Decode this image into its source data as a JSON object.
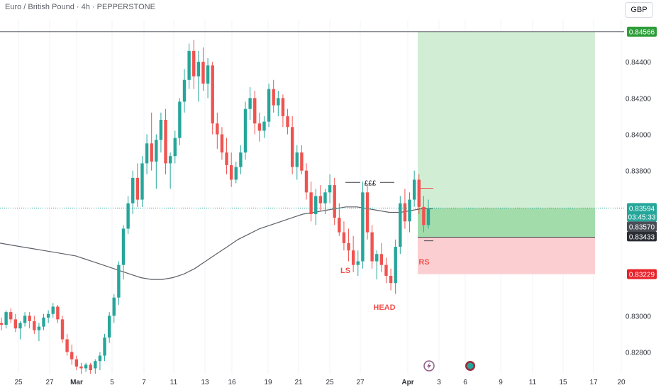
{
  "header": {
    "title": "Euro / British Pound · 4h · PEPPERSTONE",
    "currency_button": "GBP"
  },
  "chart_data": {
    "type": "candlestick",
    "ylim": [
      0.827,
      0.846
    ],
    "y_ticks": [
      "0.84400",
      "0.84200",
      "0.84000",
      "0.83800",
      "0.83000",
      "0.82800"
    ],
    "x_ticks": [
      "25",
      "27",
      "Mar",
      "5",
      "7",
      "11",
      "13",
      "16",
      "19",
      "21",
      "25",
      "27",
      "Apr",
      "3",
      "6",
      "9",
      "11",
      "15",
      "17",
      "20"
    ],
    "price_tags": {
      "target": "0.84566",
      "current": "0.83594",
      "countdown": "03:45:33",
      "entry": "0.83570",
      "level": "0.83433",
      "stop": "0.83229"
    },
    "horizontal_line": 0.84566,
    "position": {
      "entry": 0.8357,
      "target": 0.84566,
      "stop": 0.83229,
      "level": 0.83433
    },
    "annotations": {
      "liquidity": "£££",
      "left_shoulder": "LS",
      "head": "HEAD",
      "right_shoulder": "RS"
    },
    "candles": [
      [
        0.8296,
        0.8299,
        0.8292,
        0.8295
      ],
      [
        0.8295,
        0.8303,
        0.8293,
        0.8302
      ],
      [
        0.8302,
        0.8304,
        0.8296,
        0.8298
      ],
      [
        0.8298,
        0.8301,
        0.8291,
        0.8293
      ],
      [
        0.8293,
        0.8297,
        0.8287,
        0.8296
      ],
      [
        0.8296,
        0.8302,
        0.8294,
        0.83
      ],
      [
        0.83,
        0.8302,
        0.8293,
        0.8297
      ],
      [
        0.8297,
        0.83,
        0.829,
        0.8292
      ],
      [
        0.8292,
        0.8296,
        0.8286,
        0.8294
      ],
      [
        0.8294,
        0.8301,
        0.8292,
        0.8299
      ],
      [
        0.8299,
        0.8303,
        0.8296,
        0.8301
      ],
      [
        0.8301,
        0.8307,
        0.8299,
        0.8305
      ],
      [
        0.8305,
        0.8306,
        0.8296,
        0.8298
      ],
      [
        0.8298,
        0.83,
        0.8285,
        0.8287
      ],
      [
        0.8287,
        0.829,
        0.8278,
        0.828
      ],
      [
        0.828,
        0.8284,
        0.8273,
        0.8276
      ],
      [
        0.8276,
        0.8278,
        0.827,
        0.8272
      ],
      [
        0.8272,
        0.8274,
        0.8268,
        0.8271
      ],
      [
        0.8271,
        0.8274,
        0.8269,
        0.8273
      ],
      [
        0.8273,
        0.8274,
        0.8268,
        0.827
      ],
      [
        0.8271,
        0.8276,
        0.8268,
        0.8275
      ],
      [
        0.8275,
        0.828,
        0.827,
        0.8278
      ],
      [
        0.8278,
        0.829,
        0.8275,
        0.8288
      ],
      [
        0.8288,
        0.8302,
        0.8285,
        0.83
      ],
      [
        0.83,
        0.8312,
        0.8296,
        0.831
      ],
      [
        0.831,
        0.833,
        0.8306,
        0.8328
      ],
      [
        0.8328,
        0.835,
        0.832,
        0.8348
      ],
      [
        0.8348,
        0.8366,
        0.8345,
        0.8362
      ],
      [
        0.8362,
        0.838,
        0.8356,
        0.8376
      ],
      [
        0.8376,
        0.8384,
        0.836,
        0.8364
      ],
      [
        0.8364,
        0.8388,
        0.836,
        0.8384
      ],
      [
        0.8384,
        0.84,
        0.8378,
        0.8395
      ],
      [
        0.8395,
        0.8412,
        0.838,
        0.8385
      ],
      [
        0.8385,
        0.84,
        0.837,
        0.8397
      ],
      [
        0.8397,
        0.8412,
        0.839,
        0.8408
      ],
      [
        0.8408,
        0.8414,
        0.8378,
        0.8384
      ],
      [
        0.8384,
        0.839,
        0.837,
        0.8388
      ],
      [
        0.8388,
        0.8402,
        0.8384,
        0.8398
      ],
      [
        0.8398,
        0.842,
        0.8394,
        0.8418
      ],
      [
        0.8418,
        0.8436,
        0.8412,
        0.843
      ],
      [
        0.843,
        0.845,
        0.8425,
        0.8446
      ],
      [
        0.8446,
        0.8452,
        0.8425,
        0.8432
      ],
      [
        0.8432,
        0.8446,
        0.8418,
        0.844
      ],
      [
        0.844,
        0.8448,
        0.8424,
        0.8428
      ],
      [
        0.8428,
        0.8442,
        0.842,
        0.8438
      ],
      [
        0.8438,
        0.844,
        0.84,
        0.8406
      ],
      [
        0.8406,
        0.8412,
        0.8392,
        0.84
      ],
      [
        0.84,
        0.8404,
        0.8386,
        0.839
      ],
      [
        0.839,
        0.8398,
        0.8378,
        0.8383
      ],
      [
        0.8383,
        0.839,
        0.8371,
        0.8375
      ],
      [
        0.8375,
        0.8385,
        0.8373,
        0.8382
      ],
      [
        0.8382,
        0.8394,
        0.8378,
        0.839
      ],
      [
        0.839,
        0.8418,
        0.8386,
        0.8414
      ],
      [
        0.8414,
        0.8426,
        0.8408,
        0.842
      ],
      [
        0.842,
        0.8424,
        0.84,
        0.8406
      ],
      [
        0.8406,
        0.8412,
        0.8396,
        0.8402
      ],
      [
        0.8402,
        0.841,
        0.8398,
        0.8407
      ],
      [
        0.8407,
        0.8428,
        0.8404,
        0.8425
      ],
      [
        0.8425,
        0.843,
        0.8412,
        0.8416
      ],
      [
        0.8416,
        0.8424,
        0.841,
        0.842
      ],
      [
        0.842,
        0.8422,
        0.8404,
        0.841
      ],
      [
        0.841,
        0.8414,
        0.84,
        0.8404
      ],
      [
        0.8404,
        0.841,
        0.8378,
        0.8382
      ],
      [
        0.8382,
        0.8394,
        0.8375,
        0.839
      ],
      [
        0.839,
        0.8394,
        0.8378,
        0.838
      ],
      [
        0.838,
        0.8384,
        0.8364,
        0.8368
      ],
      [
        0.8368,
        0.8374,
        0.8352,
        0.8356
      ],
      [
        0.8356,
        0.837,
        0.835,
        0.8366
      ],
      [
        0.8366,
        0.8372,
        0.8358,
        0.8362
      ],
      [
        0.8362,
        0.837,
        0.8356,
        0.8368
      ],
      [
        0.8368,
        0.8378,
        0.8362,
        0.8372
      ],
      [
        0.8372,
        0.8376,
        0.835,
        0.8354
      ],
      [
        0.8354,
        0.8362,
        0.8344,
        0.8346
      ],
      [
        0.8346,
        0.8352,
        0.8336,
        0.834
      ],
      [
        0.834,
        0.8348,
        0.833,
        0.8336
      ],
      [
        0.8336,
        0.8344,
        0.8324,
        0.8328
      ],
      [
        0.8328,
        0.8336,
        0.8322,
        0.833
      ],
      [
        0.833,
        0.8374,
        0.8326,
        0.8368
      ],
      [
        0.8368,
        0.8372,
        0.8342,
        0.8346
      ],
      [
        0.8346,
        0.835,
        0.8326,
        0.833
      ],
      [
        0.833,
        0.8336,
        0.832,
        0.8334
      ],
      [
        0.8334,
        0.834,
        0.8324,
        0.8328
      ],
      [
        0.8328,
        0.8332,
        0.8318,
        0.8322
      ],
      [
        0.8322,
        0.8326,
        0.8314,
        0.8318
      ],
      [
        0.8318,
        0.8342,
        0.8312,
        0.8338
      ],
      [
        0.8338,
        0.8366,
        0.8334,
        0.8362
      ],
      [
        0.8362,
        0.837,
        0.8348,
        0.8352
      ],
      [
        0.8352,
        0.8368,
        0.8346,
        0.8364
      ],
      [
        0.8364,
        0.838,
        0.836,
        0.8375
      ],
      [
        0.8375,
        0.8378,
        0.8356,
        0.836
      ],
      [
        0.836,
        0.8366,
        0.8346,
        0.835
      ],
      [
        0.835,
        0.8364,
        0.8348,
        0.8359
      ]
    ],
    "ma": [
      0.834,
      0.8339,
      0.8338,
      0.8337,
      0.8336,
      0.8335,
      0.8334,
      0.8333,
      0.8331,
      0.8329,
      0.8327,
      0.8325,
      0.8323,
      0.8321,
      0.832,
      0.832,
      0.8321,
      0.8323,
      0.8326,
      0.833,
      0.8334,
      0.8338,
      0.8342,
      0.8345,
      0.8348,
      0.835,
      0.8352,
      0.8354,
      0.8356,
      0.8357,
      0.8358,
      0.8359,
      0.836,
      0.836,
      0.8359,
      0.8358,
      0.8357,
      0.8357,
      0.8358,
      0.8359,
      0.8359
    ]
  }
}
